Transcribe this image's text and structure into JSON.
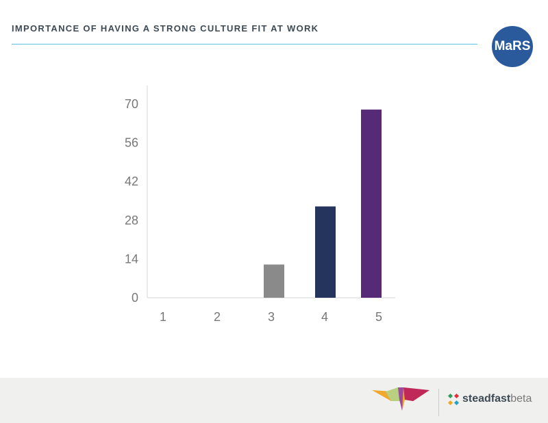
{
  "header": {
    "title": "IMPORTANCE OF HAVING A STRONG CULTURE FIT AT WORK",
    "logo_text": "MaRS"
  },
  "footer": {
    "brand_bold": "steadfast",
    "brand_light": "beta"
  },
  "chart_data": {
    "type": "bar",
    "title": "IMPORTANCE OF HAVING A STRONG CULTURE FIT AT WORK",
    "categories": [
      "1",
      "2",
      "3",
      "4",
      "5"
    ],
    "values": [
      0,
      0,
      12,
      33,
      68
    ],
    "colors": [
      "#8a8a8a",
      "#8a8a8a",
      "#8a8a8a",
      "#24345c",
      "#562a77"
    ],
    "yticks": [
      0,
      14,
      28,
      42,
      56,
      70
    ],
    "ylim": [
      0,
      70
    ],
    "xlabel": "",
    "ylabel": "",
    "grid": false
  }
}
